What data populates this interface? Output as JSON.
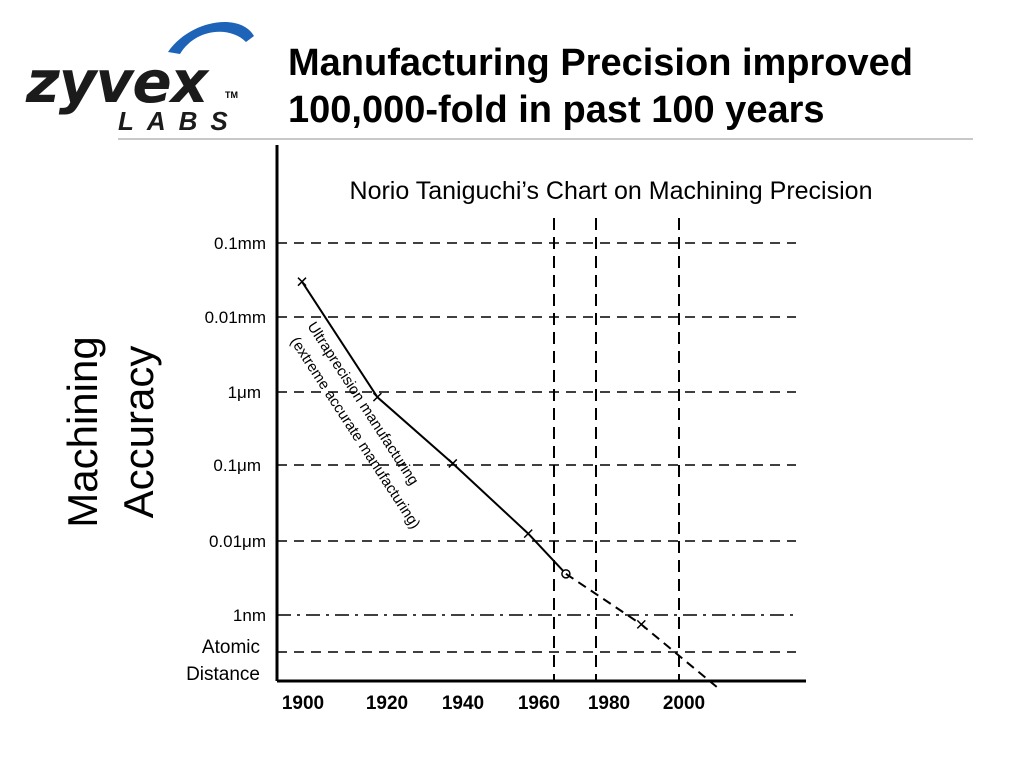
{
  "brand": {
    "name": "zyvex",
    "trademark": "TM",
    "subtitle": "LABS",
    "accent": "#1d63b8"
  },
  "slide": {
    "title": "Manufacturing Precision improved 100,000-fold in past 100 years"
  },
  "chart_data": {
    "type": "line",
    "title": "Norio Taniguchi’s Chart on Machining Precision",
    "ylabel_lines": [
      "Machining",
      "Accuracy"
    ],
    "xlabel": "",
    "y_scale": "log",
    "x_ticks": [
      "1900",
      "1920",
      "1940",
      "1960",
      "1980",
      "2000"
    ],
    "y_ticks": [
      "0.1mm",
      "0.01mm",
      "1μm",
      "0.1μm",
      "0.01μm",
      "1nm"
    ],
    "extra_line_label": [
      "Atomic",
      "Distance"
    ],
    "vertical_gridlines_x": [
      1960,
      1970,
      1990
    ],
    "annotation_lines": [
      "Ultraprecision manufacturing",
      "(extreme accurate manufacturing)"
    ],
    "series": [
      {
        "style": "solid",
        "points": [
          {
            "x": 1900,
            "y": 0.03,
            "marker": "x"
          },
          {
            "x": 1920,
            "y": 0.00085,
            "marker": "x"
          },
          {
            "x": 1940,
            "y": 0.000105,
            "marker": "x"
          },
          {
            "x": 1960,
            "y": 1.25e-05,
            "marker": "x"
          },
          {
            "x": 1970,
            "y": 3.6e-06,
            "marker": "o"
          }
        ]
      },
      {
        "style": "dashed",
        "points": [
          {
            "x": 1970,
            "y": 3.6e-06
          },
          {
            "x": 1990,
            "y": 7.5e-07,
            "marker": "x"
          },
          {
            "x": 2010,
            "y": 1.1e-07
          }
        ]
      }
    ]
  }
}
